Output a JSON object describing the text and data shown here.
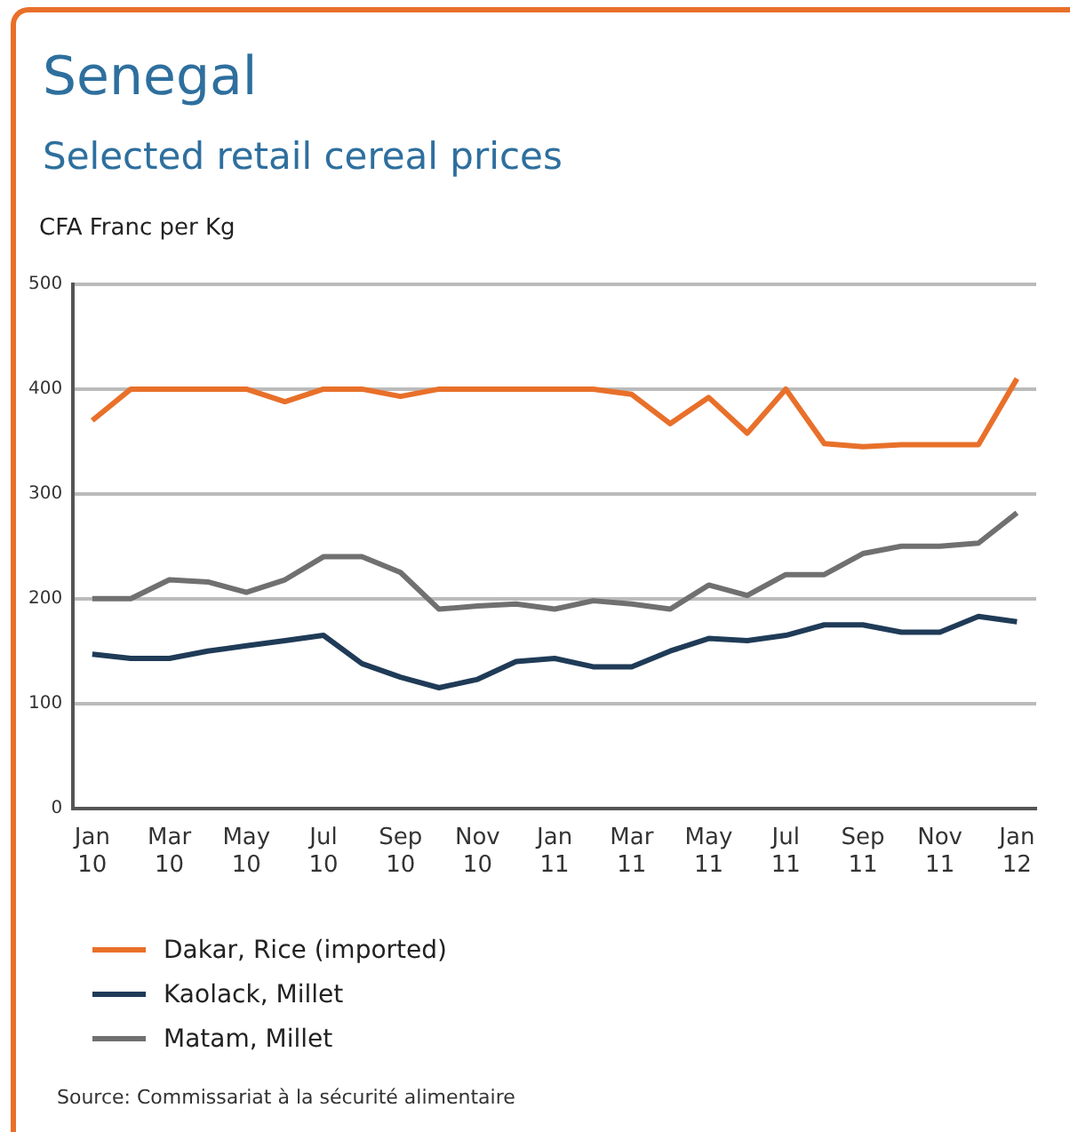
{
  "chart_data": {
    "type": "line",
    "title": "Senegal",
    "subtitle": "Selected retail cereal prices",
    "ylabel": "CFA Franc  per Kg",
    "categories": [
      "Jan 10",
      null,
      "Mar 10",
      null,
      "May 10",
      null,
      "Jul 10",
      null,
      "Sep 10",
      null,
      "Nov 10",
      null,
      "Jan 11",
      null,
      "Mar 11",
      null,
      "May 11",
      null,
      "Jul 11",
      null,
      "Sep 11",
      null,
      "Nov 11",
      null,
      "Jan 12"
    ],
    "series": [
      {
        "name": "Dakar, Rice (imported)",
        "color": "#e8702a",
        "values": [
          370,
          400,
          400,
          400,
          400,
          388,
          400,
          400,
          393,
          400,
          400,
          400,
          400,
          400,
          395,
          367,
          392,
          358,
          400,
          348,
          345,
          347,
          347,
          347,
          410
        ]
      },
      {
        "name": "Kaolack, Millet",
        "color": "#1f3b57",
        "values": [
          147,
          143,
          143,
          150,
          155,
          160,
          165,
          138,
          125,
          115,
          123,
          140,
          143,
          135,
          135,
          150,
          162,
          160,
          165,
          175,
          175,
          168,
          168,
          183,
          178
        ]
      },
      {
        "name": "Matam, Millet",
        "color": "#707070",
        "values": [
          200,
          200,
          218,
          216,
          206,
          218,
          240,
          240,
          225,
          190,
          193,
          195,
          190,
          198,
          195,
          190,
          213,
          203,
          223,
          223,
          243,
          250,
          250,
          253,
          282
        ]
      }
    ],
    "ylim": [
      0,
      500
    ],
    "yticks": [
      0,
      100,
      200,
      300,
      400,
      500
    ],
    "grid": "y",
    "legend": "bottom",
    "marker": "none",
    "line_style": "solid",
    "annotations": [
      "Source: Commissariat à la sécurité alimentaire"
    ]
  }
}
